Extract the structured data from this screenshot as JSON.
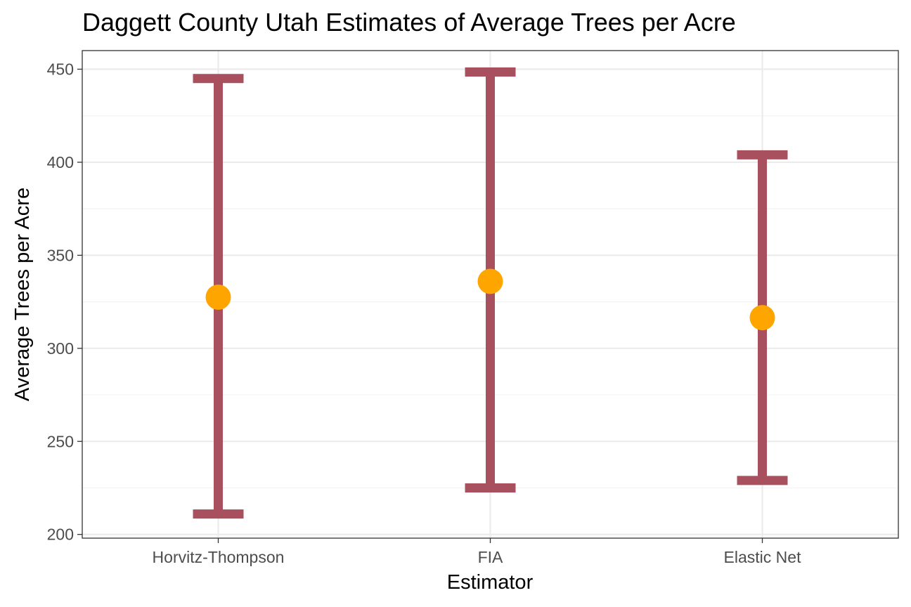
{
  "chart_data": {
    "type": "errorbar",
    "title": "Daggett County Utah Estimates of Average Trees per Acre",
    "xlabel": "Estimator",
    "ylabel": "Average Trees per Acre",
    "categories": [
      "Horvitz-Thompson",
      "FIA",
      "Elastic Net"
    ],
    "estimates": [
      327.5,
      336,
      316.5
    ],
    "lower": [
      211,
      225,
      229
    ],
    "upper": [
      445,
      448.5,
      404
    ],
    "ylim": [
      198,
      460
    ],
    "yticks": [
      200,
      250,
      300,
      350,
      400,
      450
    ],
    "grid": true,
    "legend": "none",
    "colors": {
      "interval": "#A8505E",
      "point": "#FFA500",
      "panel_border": "#333333",
      "grid_major": "#ebebeb",
      "grid_minor": "#f3f3f3",
      "tick_text": "#4d4d4d"
    }
  }
}
